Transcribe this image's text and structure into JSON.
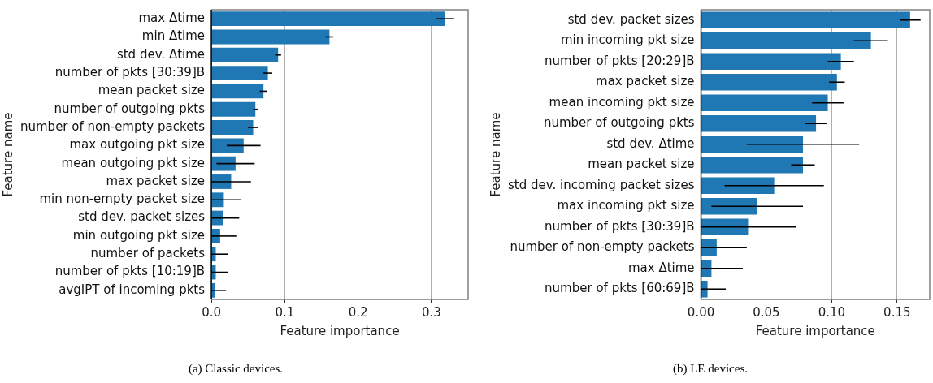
{
  "chart_data": [
    {
      "type": "bar",
      "orientation": "horizontal",
      "xlabel": "Feature importance",
      "ylabel": "Feature name",
      "annotations": [
        "(a)  Classic devices."
      ],
      "grid": "x",
      "legend": false,
      "categories": [
        "max Δtime",
        "min Δtime",
        "std dev. Δtime",
        "number of pkts [30:39]B",
        "mean packet size",
        "number of outgoing pkts",
        "number of non-empty packets",
        "max outgoing pkt size",
        "mean outgoing pkt size",
        "max packet size",
        "min non-empty packet size",
        "std dev. packet sizes",
        "min outgoing pkt size",
        "number of packets",
        "number of pkts [10:19]B",
        "avgIPT of incoming pkts"
      ],
      "values": [
        0.319,
        0.161,
        0.091,
        0.077,
        0.071,
        0.06,
        0.057,
        0.044,
        0.033,
        0.027,
        0.017,
        0.016,
        0.012,
        0.006,
        0.006,
        0.005
      ],
      "errors": [
        0.012,
        0.005,
        0.004,
        0.006,
        0.005,
        0.003,
        0.007,
        0.023,
        0.026,
        0.027,
        [
          0,
          0.041
        ],
        [
          0,
          0.038
        ],
        [
          0,
          0.034
        ],
        [
          0,
          0.023
        ],
        [
          0,
          0.022
        ],
        [
          0,
          0.02
        ]
      ],
      "color": "#1f77b4",
      "xlim": [
        0,
        0.35
      ],
      "xticks": [
        {
          "value": 0,
          "label": "0.0"
        },
        {
          "value": 0.1,
          "label": "0.1"
        },
        {
          "value": 0.2,
          "label": "0.2"
        },
        {
          "value": 0.3,
          "label": "0.3"
        }
      ]
    },
    {
      "type": "bar",
      "orientation": "horizontal",
      "xlabel": "Feature importance",
      "ylabel": "Feature name",
      "annotations": [
        "(b)  LE devices."
      ],
      "grid": "x",
      "legend": false,
      "categories": [
        "std dev. packet sizes",
        "min incoming pkt size",
        "number of pkts [20:29]B",
        "max packet size",
        "mean incoming pkt size",
        "number of outgoing pkts",
        "std dev. Δtime",
        "mean packet size",
        "std dev. incoming packet sizes",
        "max incoming pkt size",
        "number of pkts [30:39]B",
        "number of non-empty packets",
        "max Δtime",
        "number of pkts [60:69]B"
      ],
      "values": [
        0.16,
        0.13,
        0.107,
        0.104,
        0.097,
        0.088,
        0.078,
        0.078,
        0.056,
        0.043,
        0.036,
        0.012,
        0.008,
        0.005
      ],
      "errors": [
        0.008,
        0.013,
        0.01,
        0.006,
        0.012,
        0.008,
        0.043,
        0.009,
        0.038,
        0.035,
        [
          0,
          0.073
        ],
        [
          0,
          0.035
        ],
        [
          0,
          0.032
        ],
        [
          0,
          0.019
        ]
      ],
      "color": "#1f77b4",
      "xlim": [
        0,
        0.175
      ],
      "xticks": [
        {
          "value": 0,
          "label": "0.00"
        },
        {
          "value": 0.05,
          "label": "0.05"
        },
        {
          "value": 0.1,
          "label": "0.10"
        },
        {
          "value": 0.15,
          "label": "0.15"
        }
      ]
    }
  ]
}
